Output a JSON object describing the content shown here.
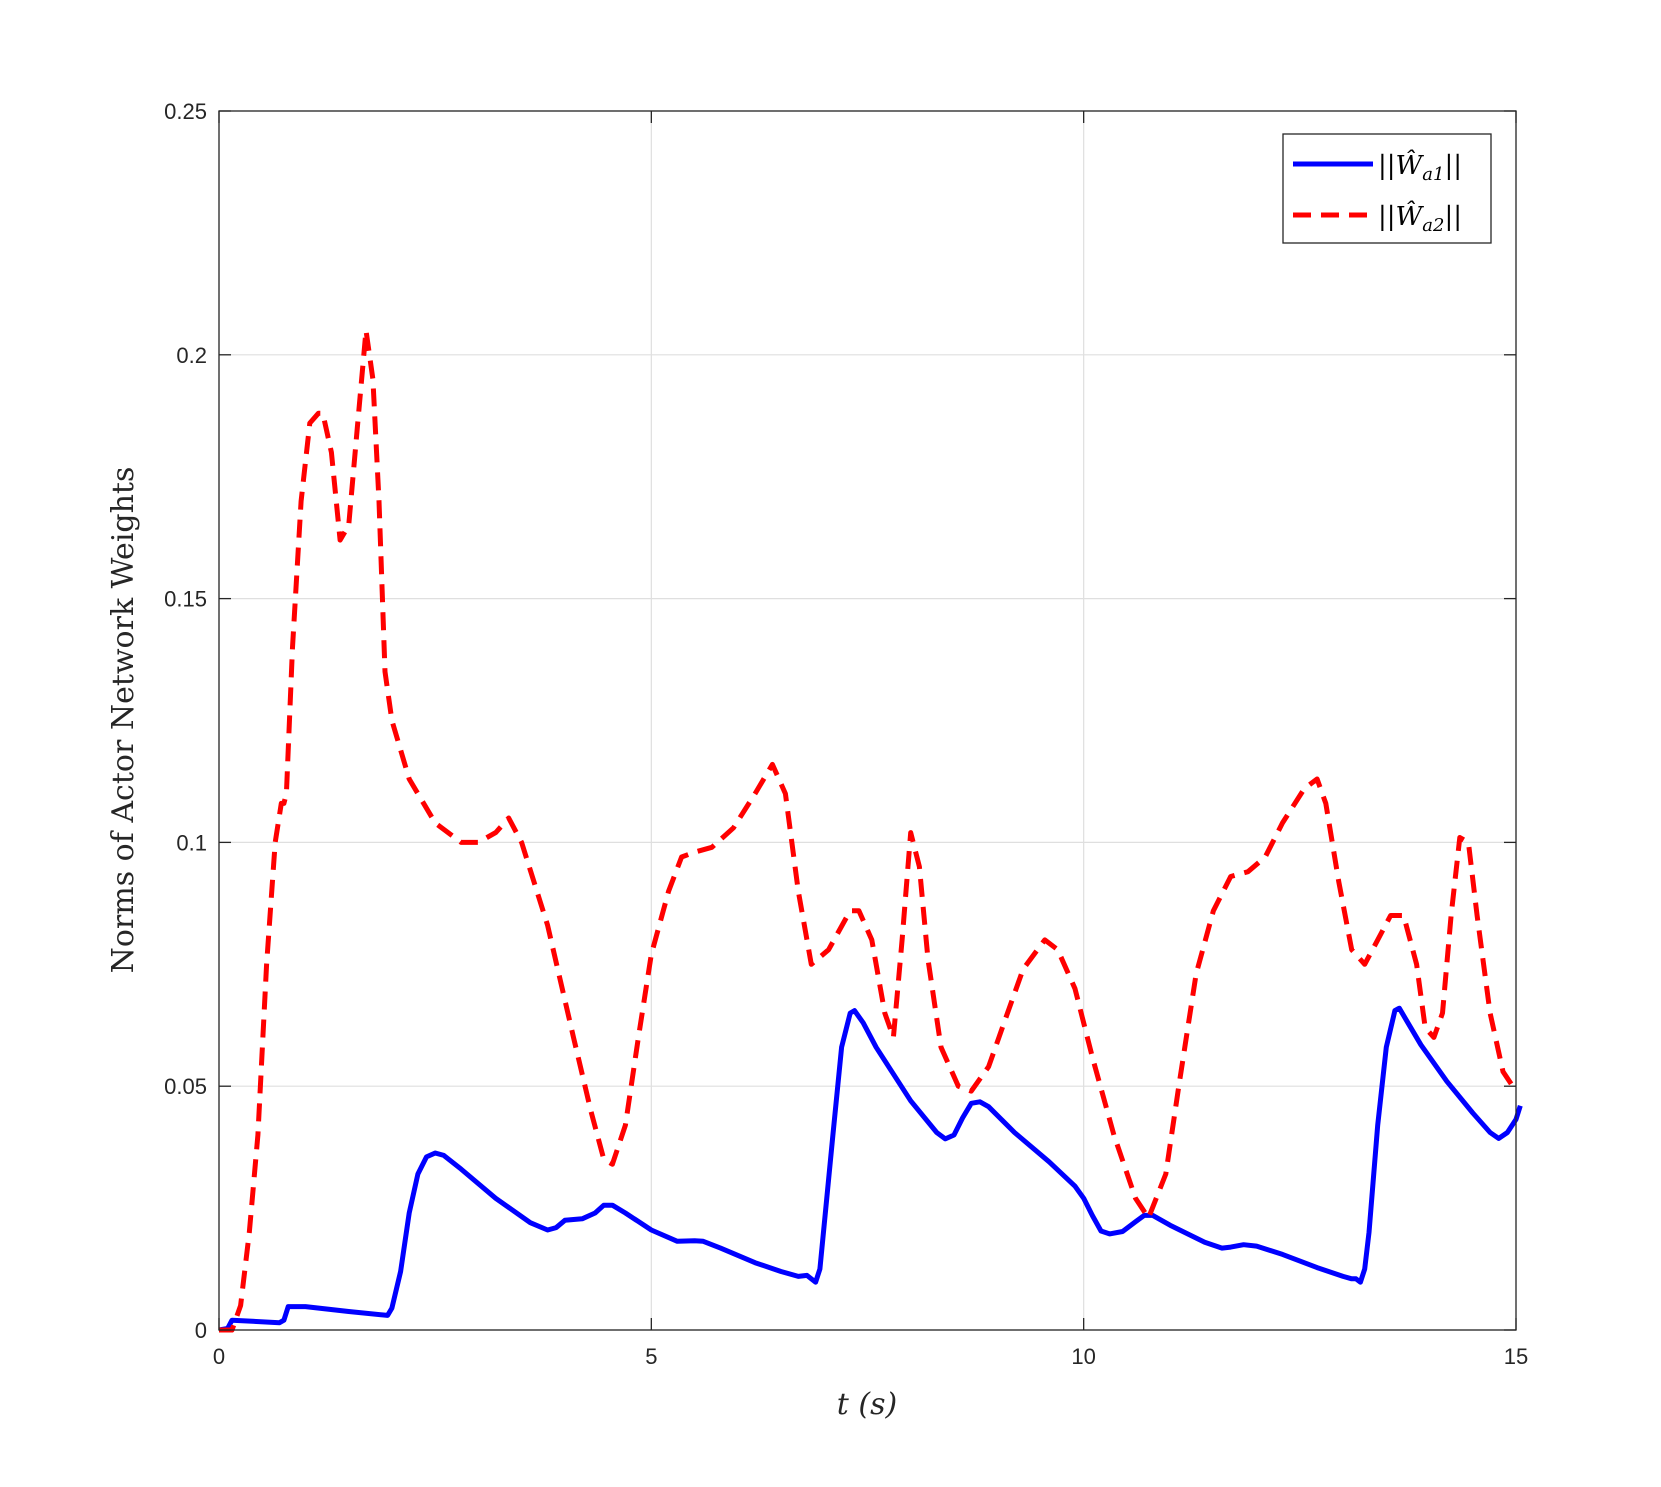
{
  "chart_data": {
    "type": "line",
    "xlabel": "t (s)",
    "ylabel": "Norms of Actor Network Weights",
    "xlim": [
      0,
      15
    ],
    "ylim": [
      0,
      0.25
    ],
    "xticks": [
      0,
      5,
      10,
      15
    ],
    "yticks": [
      0,
      0.05,
      0.1,
      0.15,
      0.2,
      0.25
    ],
    "xtick_labels": [
      "0",
      "5",
      "10",
      "15"
    ],
    "ytick_labels": [
      "0",
      "0.05",
      "0.1",
      "0.15",
      "0.2",
      "0.25"
    ],
    "grid": true,
    "legend_position": "top-right",
    "series": [
      {
        "name": "||Ŵa1||",
        "legend_main": "||Ŵ",
        "legend_sub": "a1",
        "legend_tail": "||",
        "color": "#0000ff",
        "style": "solid",
        "points": [
          [
            0,
            0
          ],
          [
            0.1,
            0.0003
          ],
          [
            0.15,
            0.002
          ],
          [
            0.7,
            0.0015
          ],
          [
            0.75,
            0.002
          ],
          [
            0.8,
            0.0048
          ],
          [
            1.0,
            0.0048
          ],
          [
            1.5,
            0.0038
          ],
          [
            1.95,
            0.003
          ],
          [
            2.0,
            0.0045
          ],
          [
            2.1,
            0.012
          ],
          [
            2.2,
            0.024
          ],
          [
            2.3,
            0.032
          ],
          [
            2.4,
            0.0355
          ],
          [
            2.5,
            0.0363
          ],
          [
            2.6,
            0.0358
          ],
          [
            2.8,
            0.033
          ],
          [
            3.2,
            0.027
          ],
          [
            3.6,
            0.022
          ],
          [
            3.8,
            0.0205
          ],
          [
            3.9,
            0.021
          ],
          [
            4.0,
            0.0225
          ],
          [
            4.2,
            0.0228
          ],
          [
            4.35,
            0.024
          ],
          [
            4.45,
            0.0256
          ],
          [
            4.55,
            0.0256
          ],
          [
            4.7,
            0.024
          ],
          [
            5.0,
            0.0205
          ],
          [
            5.3,
            0.0182
          ],
          [
            5.5,
            0.0183
          ],
          [
            5.6,
            0.0182
          ],
          [
            5.8,
            0.0168
          ],
          [
            6.2,
            0.0138
          ],
          [
            6.5,
            0.012
          ],
          [
            6.7,
            0.011
          ],
          [
            6.8,
            0.0112
          ],
          [
            6.85,
            0.0105
          ],
          [
            6.9,
            0.0098
          ],
          [
            6.95,
            0.0125
          ],
          [
            7.1,
            0.04
          ],
          [
            7.2,
            0.058
          ],
          [
            7.3,
            0.065
          ],
          [
            7.35,
            0.0655
          ],
          [
            7.45,
            0.063
          ],
          [
            7.6,
            0.058
          ],
          [
            8.0,
            0.047
          ],
          [
            8.3,
            0.0405
          ],
          [
            8.4,
            0.0392
          ],
          [
            8.5,
            0.04
          ],
          [
            8.6,
            0.0435
          ],
          [
            8.7,
            0.0465
          ],
          [
            8.8,
            0.0468
          ],
          [
            8.9,
            0.0458
          ],
          [
            9.2,
            0.0405
          ],
          [
            9.6,
            0.0345
          ],
          [
            9.9,
            0.0295
          ],
          [
            10.0,
            0.027
          ],
          [
            10.1,
            0.0235
          ],
          [
            10.2,
            0.0203
          ],
          [
            10.3,
            0.0197
          ],
          [
            10.45,
            0.0202
          ],
          [
            10.6,
            0.0222
          ],
          [
            10.7,
            0.0235
          ],
          [
            10.8,
            0.0235
          ],
          [
            11.0,
            0.0215
          ],
          [
            11.4,
            0.018
          ],
          [
            11.6,
            0.0168
          ],
          [
            11.7,
            0.017
          ],
          [
            11.85,
            0.0175
          ],
          [
            12.0,
            0.0172
          ],
          [
            12.3,
            0.0155
          ],
          [
            12.7,
            0.0128
          ],
          [
            13.0,
            0.011
          ],
          [
            13.1,
            0.0105
          ],
          [
            13.15,
            0.0105
          ],
          [
            13.2,
            0.0098
          ],
          [
            13.25,
            0.0125
          ],
          [
            13.3,
            0.02
          ],
          [
            13.4,
            0.042
          ],
          [
            13.5,
            0.058
          ],
          [
            13.6,
            0.0655
          ],
          [
            13.65,
            0.066
          ],
          [
            13.75,
            0.063
          ],
          [
            13.9,
            0.0585
          ],
          [
            14.2,
            0.051
          ],
          [
            14.5,
            0.0445
          ],
          [
            14.7,
            0.0405
          ],
          [
            14.8,
            0.0393
          ],
          [
            14.9,
            0.0405
          ],
          [
            15.0,
            0.0432
          ],
          [
            15.05,
            0.046
          ]
        ]
      },
      {
        "name": "||Ŵa2||",
        "legend_main": "||Ŵ",
        "legend_sub": "a2",
        "legend_tail": "||",
        "color": "#ff0000",
        "style": "dashed",
        "points": [
          [
            0,
            0
          ],
          [
            0.15,
            0
          ],
          [
            0.25,
            0.005
          ],
          [
            0.35,
            0.02
          ],
          [
            0.45,
            0.04
          ],
          [
            0.55,
            0.075
          ],
          [
            0.65,
            0.1
          ],
          [
            0.72,
            0.108
          ],
          [
            0.75,
            0.108
          ],
          [
            0.78,
            0.11
          ],
          [
            0.85,
            0.14
          ],
          [
            0.95,
            0.17
          ],
          [
            1.05,
            0.186
          ],
          [
            1.15,
            0.188
          ],
          [
            1.2,
            0.188
          ],
          [
            1.3,
            0.18
          ],
          [
            1.4,
            0.162
          ],
          [
            1.5,
            0.165
          ],
          [
            1.6,
            0.185
          ],
          [
            1.7,
            0.205
          ],
          [
            1.78,
            0.195
          ],
          [
            1.85,
            0.17
          ],
          [
            1.92,
            0.135
          ],
          [
            2.0,
            0.125
          ],
          [
            2.2,
            0.113
          ],
          [
            2.5,
            0.104
          ],
          [
            2.8,
            0.1
          ],
          [
            3.0,
            0.1
          ],
          [
            3.2,
            0.102
          ],
          [
            3.35,
            0.105
          ],
          [
            3.5,
            0.1
          ],
          [
            3.8,
            0.083
          ],
          [
            4.1,
            0.06
          ],
          [
            4.3,
            0.045
          ],
          [
            4.45,
            0.035
          ],
          [
            4.55,
            0.034
          ],
          [
            4.7,
            0.042
          ],
          [
            4.85,
            0.06
          ],
          [
            5.0,
            0.077
          ],
          [
            5.2,
            0.09
          ],
          [
            5.35,
            0.097
          ],
          [
            5.5,
            0.098
          ],
          [
            5.7,
            0.099
          ],
          [
            5.95,
            0.103
          ],
          [
            6.2,
            0.11
          ],
          [
            6.4,
            0.116
          ],
          [
            6.55,
            0.11
          ],
          [
            6.7,
            0.09
          ],
          [
            6.85,
            0.075
          ],
          [
            7.05,
            0.078
          ],
          [
            7.3,
            0.086
          ],
          [
            7.4,
            0.086
          ],
          [
            7.55,
            0.08
          ],
          [
            7.7,
            0.065
          ],
          [
            7.8,
            0.06
          ],
          [
            7.9,
            0.08
          ],
          [
            8.0,
            0.102
          ],
          [
            8.1,
            0.095
          ],
          [
            8.2,
            0.076
          ],
          [
            8.35,
            0.058
          ],
          [
            8.55,
            0.05
          ],
          [
            8.7,
            0.049
          ],
          [
            8.9,
            0.054
          ],
          [
            9.1,
            0.064
          ],
          [
            9.3,
            0.074
          ],
          [
            9.55,
            0.08
          ],
          [
            9.7,
            0.078
          ],
          [
            9.9,
            0.07
          ],
          [
            10.1,
            0.056
          ],
          [
            10.35,
            0.04
          ],
          [
            10.6,
            0.027
          ],
          [
            10.75,
            0.023
          ],
          [
            10.95,
            0.032
          ],
          [
            11.1,
            0.05
          ],
          [
            11.3,
            0.073
          ],
          [
            11.5,
            0.086
          ],
          [
            11.7,
            0.093
          ],
          [
            11.9,
            0.094
          ],
          [
            12.1,
            0.097
          ],
          [
            12.3,
            0.104
          ],
          [
            12.55,
            0.111
          ],
          [
            12.7,
            0.113
          ],
          [
            12.8,
            0.108
          ],
          [
            12.95,
            0.092
          ],
          [
            13.1,
            0.078
          ],
          [
            13.25,
            0.075
          ],
          [
            13.4,
            0.08
          ],
          [
            13.55,
            0.085
          ],
          [
            13.7,
            0.085
          ],
          [
            13.85,
            0.075
          ],
          [
            13.95,
            0.062
          ],
          [
            14.05,
            0.06
          ],
          [
            14.15,
            0.065
          ],
          [
            14.25,
            0.085
          ],
          [
            14.35,
            0.101
          ],
          [
            14.45,
            0.1
          ],
          [
            14.55,
            0.085
          ],
          [
            14.7,
            0.065
          ],
          [
            14.85,
            0.053
          ],
          [
            15.0,
            0.049
          ]
        ]
      }
    ]
  }
}
